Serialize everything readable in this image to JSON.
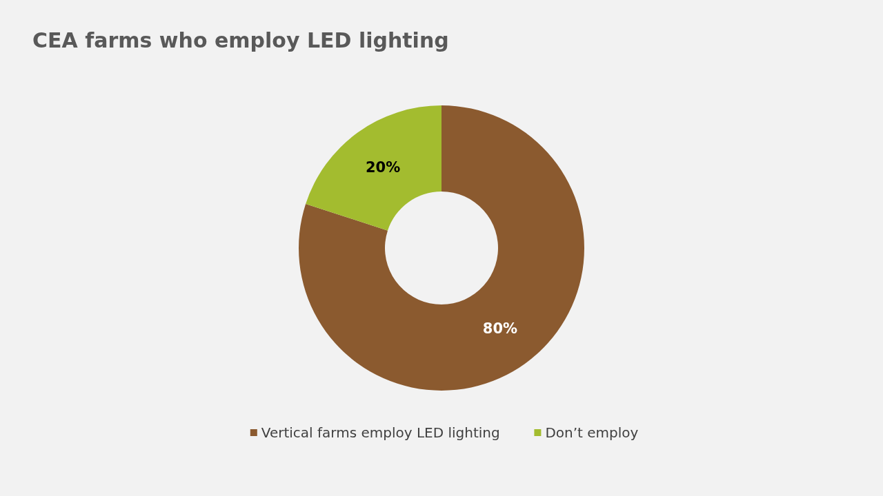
{
  "chart_data": {
    "type": "donut",
    "title": "CEA farms who employ LED lighting",
    "categories": [
      "Vertical farms employ LED lighting",
      "Don’t employ"
    ],
    "values": [
      80,
      20
    ],
    "colors": [
      "#8b5a2f",
      "#a3bc2f"
    ],
    "value_labels": [
      "80%",
      "20%"
    ],
    "legend": "bottom"
  }
}
